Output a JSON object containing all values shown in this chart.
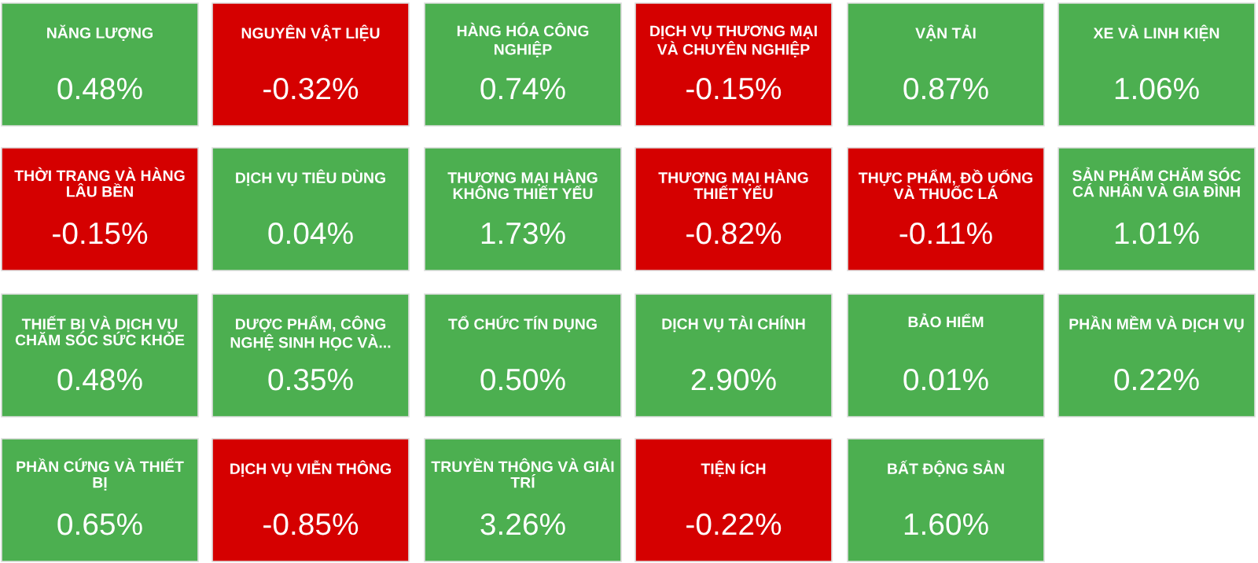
{
  "chart_data": {
    "type": "other",
    "categories": [
      "NĂNG LƯỢNG",
      "NGUYÊN VẬT LIỆU",
      "HÀNG HÓA CÔNG NGHIỆP",
      "DỊCH VỤ THƯƠNG MẠI VÀ CHUYÊN NGHIỆP",
      "VẬN TẢI",
      "XE VÀ LINH KIỆN",
      "THỜI TRANG VÀ HÀNG LÂU BỀN",
      "DỊCH VỤ TIÊU DÙNG",
      "THƯƠNG MẠI HÀNG KHÔNG THIẾT YẾU",
      "THƯƠNG MẠI HÀNG THIẾT YẾU",
      "THỰC PHẨM, ĐỒ UỐNG VÀ THUỐC LÁ",
      "SẢN PHẨM CHĂM SÓC CÁ NHÂN VÀ GIA ĐÌNH",
      "THIẾT BỊ VÀ DỊCH VỤ CHĂM SÓC SỨC KHỎE",
      "DƯỢC PHẨM, CÔNG NGHỆ SINH HỌC VÀ...",
      "TỔ CHỨC TÍN DỤNG",
      "DỊCH VỤ TÀI CHÍNH",
      "BẢO HIỂM",
      "PHẦN MỀM VÀ DỊCH VỤ",
      "PHẦN CỨNG VÀ THIẾT BỊ",
      "DỊCH VỤ VIỄN THÔNG",
      "TRUYỀN THÔNG VÀ GIẢI TRÍ",
      "TIỆN ÍCH",
      "BẤT ĐỘNG SẢN"
    ],
    "values": [
      0.48,
      -0.32,
      0.74,
      -0.15,
      0.87,
      1.06,
      -0.15,
      0.04,
      1.73,
      -0.82,
      -0.11,
      1.01,
      0.48,
      0.35,
      0.5,
      2.9,
      0.01,
      0.22,
      0.65,
      -0.85,
      3.26,
      -0.22,
      1.6
    ],
    "value_labels": [
      "0.48%",
      "-0.32%",
      "0.74%",
      "-0.15%",
      "0.87%",
      "1.06%",
      "-0.15%",
      "0.04%",
      "1.73%",
      "-0.82%",
      "-0.11%",
      "1.01%",
      "0.48%",
      "0.35%",
      "0.50%",
      "2.90%",
      "0.01%",
      "0.22%",
      "0.65%",
      "-0.85%",
      "3.26%",
      "-0.22%",
      "1.60%"
    ],
    "colors": [
      "#4caf50",
      "#d50000",
      "#4caf50",
      "#d50000",
      "#4caf50",
      "#4caf50",
      "#d50000",
      "#4caf50",
      "#4caf50",
      "#d50000",
      "#d50000",
      "#4caf50",
      "#4caf50",
      "#4caf50",
      "#4caf50",
      "#4caf50",
      "#4caf50",
      "#4caf50",
      "#4caf50",
      "#d50000",
      "#4caf50",
      "#d50000",
      "#4caf50"
    ]
  }
}
